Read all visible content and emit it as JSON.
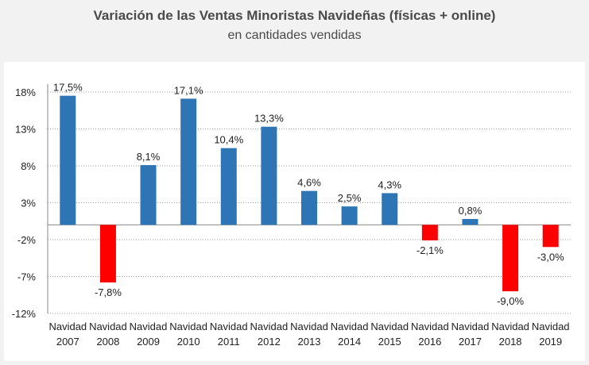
{
  "chart_data": {
    "type": "bar",
    "title": "Variación de las Ventas Minoristas Navideñas (físicas + online)",
    "subtitle": "en cantidades vendidas",
    "categories": [
      [
        "Navidad",
        "2007"
      ],
      [
        "Navidad",
        "2008"
      ],
      [
        "Navidad",
        "2009"
      ],
      [
        "Navidad",
        "2010"
      ],
      [
        "Navidad",
        "2011"
      ],
      [
        "Navidad",
        "2012"
      ],
      [
        "Navidad",
        "2013"
      ],
      [
        "Navidad",
        "2014"
      ],
      [
        "Navidad",
        "2015"
      ],
      [
        "Navidad",
        "2016"
      ],
      [
        "Navidad",
        "2017"
      ],
      [
        "Navidad",
        "2018"
      ],
      [
        "Navidad",
        "2019"
      ]
    ],
    "values": [
      17.5,
      -7.8,
      8.1,
      17.1,
      10.4,
      13.3,
      4.6,
      2.5,
      4.3,
      -2.1,
      0.8,
      -9.0,
      -3.0
    ],
    "labels": [
      "17,5%",
      "-7,8%",
      "8,1%",
      "17,1%",
      "10,4%",
      "13,3%",
      "4,6%",
      "2,5%",
      "4,3%",
      "-2,1%",
      "0,8%",
      "-9,0%",
      "-3,0%"
    ],
    "yticks": [
      18,
      13,
      8,
      3,
      -2,
      -7,
      -12
    ],
    "ytick_labels": [
      "18%",
      "13%",
      "8%",
      "3%",
      "-2%",
      "-7%",
      "-12%"
    ],
    "ylim": [
      -12,
      18
    ],
    "grid": true,
    "xlabel": "",
    "ylabel": "",
    "colors": {
      "positive": "#2e75b6",
      "negative": "#ff0000"
    }
  }
}
